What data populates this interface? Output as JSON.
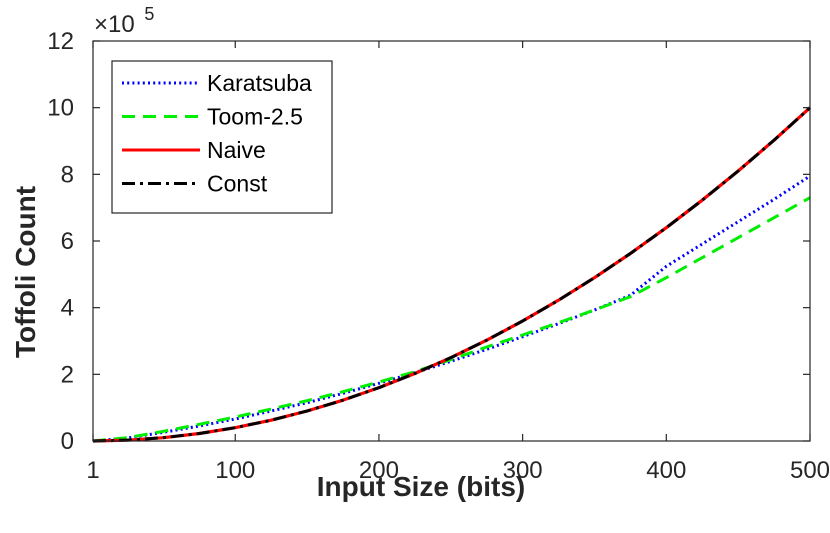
{
  "chart_data": {
    "type": "line",
    "xlabel": "Input Size (bits)",
    "ylabel": "Toffoli Count",
    "y_multiplier_label": "×10",
    "y_multiplier_exponent": "5",
    "xlim": [
      1,
      500
    ],
    "ylim": [
      0,
      12
    ],
    "x_ticks": [
      1,
      100,
      200,
      300,
      400,
      500
    ],
    "x_tick_labels": [
      "1",
      "100",
      "200",
      "300",
      "400",
      "500"
    ],
    "y_ticks": [
      0,
      2,
      4,
      6,
      8,
      10,
      12
    ],
    "y_tick_labels": [
      "0",
      "2",
      "4",
      "6",
      "8",
      "10",
      "12"
    ],
    "grid": false,
    "legend_position": "top-left",
    "x": [
      1,
      25,
      50,
      75,
      100,
      125,
      150,
      175,
      200,
      225,
      250,
      275,
      300,
      325,
      350,
      375,
      400,
      425,
      450,
      475,
      500
    ],
    "series": [
      {
        "name": "Karatsuba",
        "color": "#0000ff",
        "style": "dotted",
        "values": [
          0,
          0.09,
          0.26,
          0.45,
          0.66,
          0.9,
          1.15,
          1.43,
          1.73,
          2.05,
          2.39,
          2.75,
          3.13,
          3.52,
          3.93,
          4.37,
          5.24,
          5.91,
          6.58,
          7.25,
          7.95
        ]
      },
      {
        "name": "Toom-2.5",
        "color": "#00ee00",
        "style": "dashed",
        "values": [
          0,
          0.1,
          0.29,
          0.5,
          0.72,
          0.96,
          1.21,
          1.48,
          1.77,
          2.08,
          2.44,
          2.82,
          3.18,
          3.55,
          3.93,
          4.33,
          4.9,
          5.5,
          6.1,
          6.7,
          7.3
        ]
      },
      {
        "name": "Naive",
        "color": "#ff0000",
        "style": "solid",
        "values": [
          0,
          0.025,
          0.1,
          0.225,
          0.4,
          0.625,
          0.9,
          1.225,
          1.6,
          2.025,
          2.5,
          3.025,
          3.6,
          4.225,
          4.9,
          5.625,
          6.4,
          7.225,
          8.1,
          9.025,
          10.0
        ]
      },
      {
        "name": "Const",
        "color": "#000000",
        "style": "dashdot",
        "values": [
          0,
          0.025,
          0.1,
          0.225,
          0.4,
          0.625,
          0.9,
          1.225,
          1.6,
          2.025,
          2.5,
          3.025,
          3.6,
          4.225,
          4.9,
          5.625,
          6.4,
          7.225,
          8.1,
          9.025,
          10.0
        ]
      }
    ]
  }
}
